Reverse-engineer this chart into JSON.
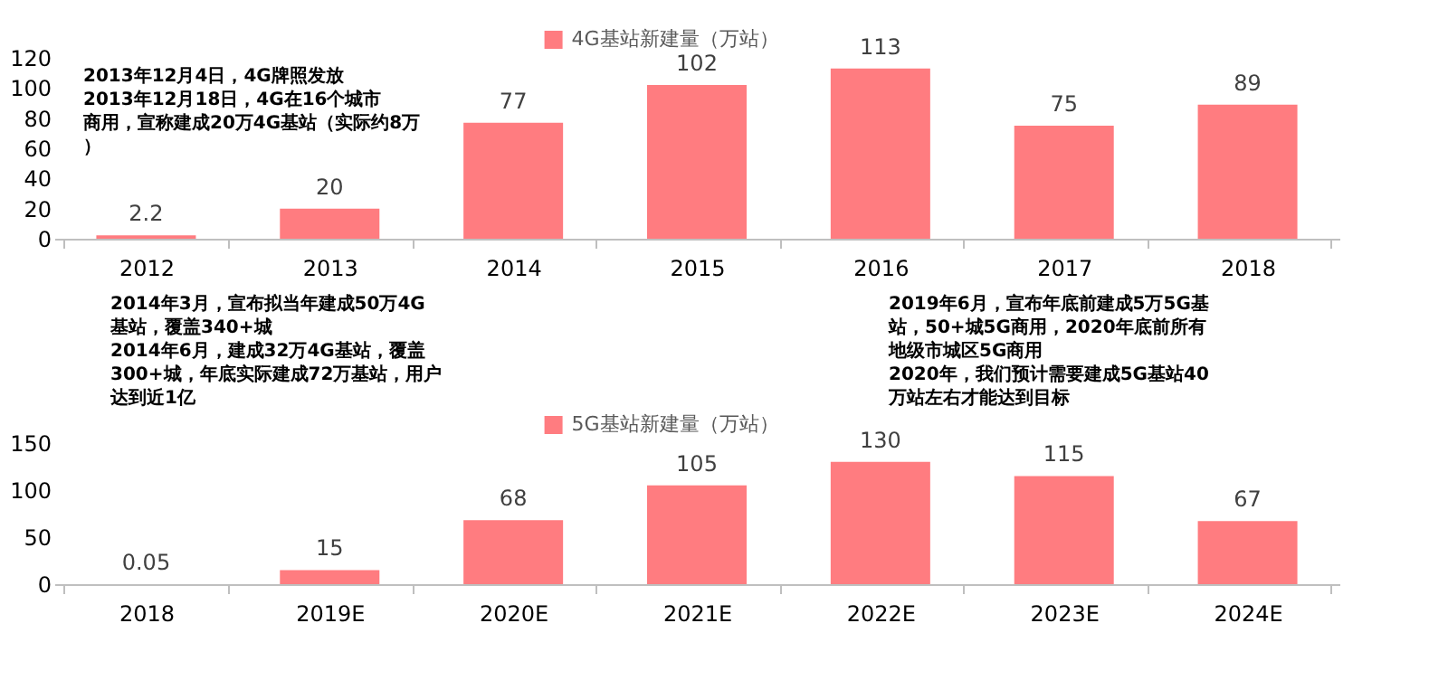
{
  "chart_data": [
    {
      "type": "bar",
      "categories": [
        "2012",
        "2013",
        "2014",
        "2015",
        "2016",
        "2017",
        "2018"
      ],
      "series": [
        {
          "name": "4G基站新建量（万站）",
          "color": "#ff7c80",
          "values": [
            2.2,
            20,
            77,
            102,
            113,
            75,
            89
          ]
        }
      ],
      "ylim": [
        0,
        120
      ],
      "yticks": [
        0,
        20,
        40,
        60,
        80,
        100,
        120
      ],
      "grid": false,
      "legend": "top",
      "data_labels": true,
      "annotations": [
        "2013年12月4日，4G牌照发放",
        "2013年12月18日，4G在16个城市商用，宣称建成20万4G基站（实际约8万）"
      ]
    },
    {
      "type": "bar",
      "categories": [
        "2018",
        "2019E",
        "2020E",
        "2021E",
        "2022E",
        "2023E",
        "2024E"
      ],
      "series": [
        {
          "name": "5G基站新建量（万站）",
          "color": "#ff7c80",
          "values": [
            0.05,
            15,
            68,
            105,
            130,
            115,
            67
          ]
        }
      ],
      "ylim": [
        0,
        150
      ],
      "yticks": [
        0,
        50,
        100,
        150
      ],
      "grid": false,
      "legend": "top",
      "data_labels": true,
      "annotations": [
        "2014年3月，宣布拟当年建成50万4G基站，覆盖340+城",
        "2014年6月，建成32万4G基站，覆盖300+城，年底实际建成72万基站，用户达到近1亿",
        "2019年6月，宣布年底前建成5万5G基站，50+城5G商用，2020年底前所有地级市城区5G商用",
        "2020年，我们预计需要建成5G基站40万站左右才能达到目标"
      ]
    }
  ]
}
